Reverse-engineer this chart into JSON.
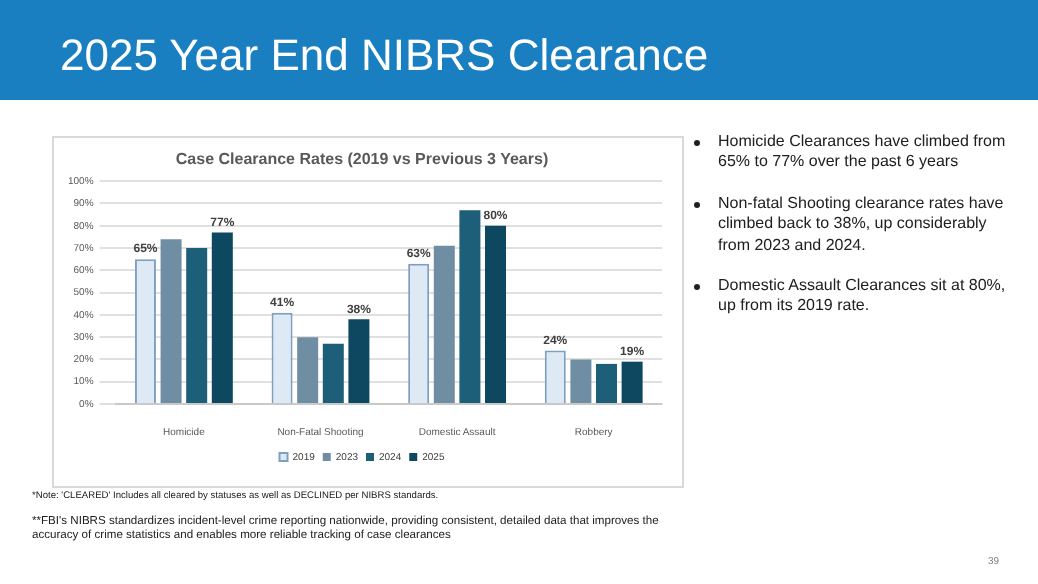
{
  "chart_data": {
    "type": "bar",
    "title": "Case Clearance Rates (2019 vs Previous 3 Years)",
    "subtitle": "2025 Year End NIBRS Clearance",
    "categories": [
      "Homicide",
      "Non-Fatal Shooting",
      "Domestic Assault",
      "Robbery"
    ],
    "series": [
      {
        "name": "2019",
        "color": "#dde9f5",
        "values": [
          65,
          41,
          63,
          24
        ],
        "value_labels": [
          "65%",
          "41%",
          "63%",
          "24%"
        ]
      },
      {
        "name": "2023",
        "color": "#6f8ea3",
        "values": [
          74,
          30,
          71,
          20
        ]
      },
      {
        "name": "2024",
        "color": "#1d5e79",
        "values": [
          70,
          27,
          87,
          18
        ]
      },
      {
        "name": "2025",
        "color": "#0d4860",
        "values": [
          77,
          38,
          80,
          19
        ],
        "value_labels": [
          "77%",
          "38%",
          "80%",
          "19%"
        ]
      }
    ],
    "ylim": [
      0,
      100
    ],
    "yticks": [
      {
        "value": 0,
        "label": "0%"
      },
      {
        "value": 10,
        "label": "10%"
      },
      {
        "value": 20,
        "label": "20%"
      },
      {
        "value": 30,
        "label": "30%"
      },
      {
        "value": 40,
        "label": "40%"
      },
      {
        "value": 50,
        "label": "50%"
      },
      {
        "value": 60,
        "label": "60%"
      },
      {
        "value": 70,
        "label": "70%"
      },
      {
        "value": 80,
        "label": "80%"
      },
      {
        "value": 90,
        "label": "90%"
      },
      {
        "value": 100,
        "label": "100%"
      }
    ],
    "grid": "y",
    "legend": "bottom",
    "annotations": [
      "Homicide Clearances have climbed from 65% to 77% over the past 6 years",
      "Non-fatal Shooting clearance rates have climbed back to 38%, up considerably from 2023 and 2024.",
      "Domestic Assault Clearances sit at 80%, up from its 2019 rate.",
      "*Note: 'CLEARED' Includes all cleared by statuses as well as DECLINED per NIBRS standards.",
      "**FBI's NIBRS standardizes incident-level crime reporting nationwide, providing consistent, detailed data that improves the accuracy of crime statistics and enables more reliable tracking of case clearances",
      "39"
    ]
  }
}
